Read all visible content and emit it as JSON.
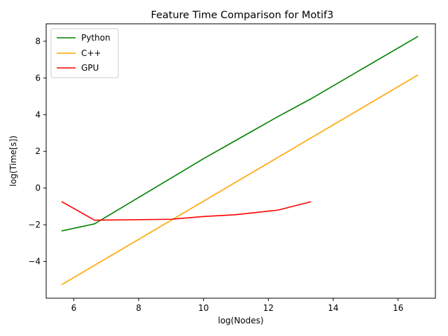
{
  "chart_data": {
    "type": "line",
    "title": "Feature Time Comparison for Motif3",
    "xlabel": "log(Nodes)",
    "ylabel": "log(Time[s])",
    "xlim": [
      5.15,
      17.15
    ],
    "ylim": [
      -6.0,
      8.95
    ],
    "xticks": [
      6,
      8,
      10,
      12,
      14,
      16
    ],
    "yticks": [
      -4,
      -2,
      0,
      2,
      4,
      6,
      8
    ],
    "ytick_labels": [
      "−4",
      "−2",
      "0",
      "2",
      "4",
      "6",
      "8"
    ],
    "grid": false,
    "legend_position": "top-left",
    "series": [
      {
        "name": "Python",
        "color": "#008000",
        "points": [
          [
            5.64,
            -2.33
          ],
          [
            6.64,
            -1.95
          ],
          [
            10.0,
            1.6
          ],
          [
            11.0,
            2.6
          ],
          [
            12.3,
            3.9
          ],
          [
            13.3,
            4.85
          ],
          [
            16.6,
            8.25
          ]
        ]
      },
      {
        "name": "C++",
        "color": "#FFA500",
        "points": [
          [
            5.64,
            -5.25
          ],
          [
            16.6,
            6.15
          ]
        ]
      },
      {
        "name": "GPU",
        "color": "#FF0000",
        "points": [
          [
            5.64,
            -0.75
          ],
          [
            6.64,
            -1.75
          ],
          [
            9.0,
            -1.7
          ],
          [
            10.0,
            -1.55
          ],
          [
            11.0,
            -1.45
          ],
          [
            12.3,
            -1.2
          ],
          [
            13.3,
            -0.75
          ]
        ]
      }
    ]
  }
}
